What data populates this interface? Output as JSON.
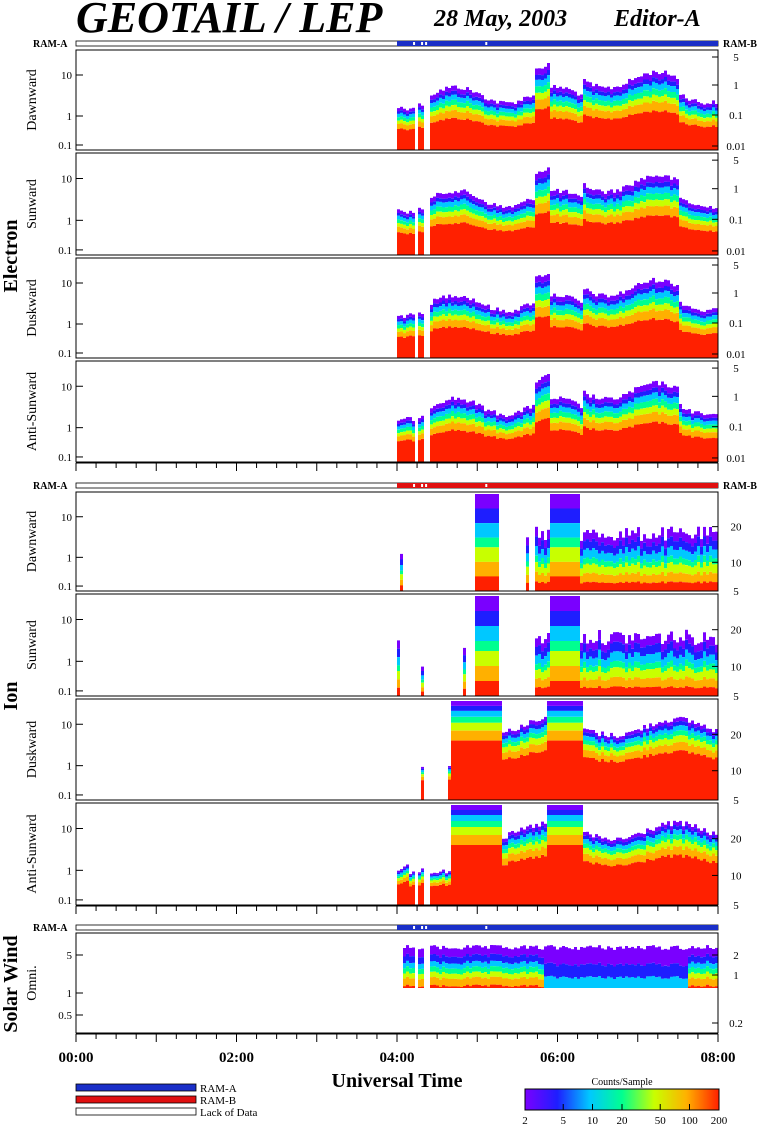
{
  "header": {
    "title": "GEOTAIL / LEP",
    "date": "28 May, 2003",
    "editor": "Editor-A"
  },
  "groups": [
    {
      "label": "Electron",
      "ram_left": "RAM-A",
      "ram_right": "RAM-B"
    },
    {
      "label": "Ion",
      "ram_left": "RAM-A",
      "ram_right": "RAM-B"
    },
    {
      "label": "Solar Wind",
      "ram_left": "RAM-A"
    }
  ],
  "x_axis": {
    "title": "Universal Time",
    "ticks": [
      "00:00",
      "02:00",
      "04:00",
      "06:00",
      "08:00"
    ]
  },
  "legend": {
    "items": [
      {
        "label": "RAM-A",
        "color": "#1a2fc8"
      },
      {
        "label": "RAM-B",
        "color": "#e01010"
      },
      {
        "label": "Lack of Data",
        "color": "#ffffff"
      }
    ]
  },
  "colorbar": {
    "title": "Counts/Sample",
    "ticks": [
      "2",
      "5",
      "10",
      "20",
      "50",
      "100",
      "200"
    ],
    "colors": [
      "#7a00ff",
      "#1e1eff",
      "#00c8ff",
      "#00ff90",
      "#c8ff00",
      "#ffb000",
      "#ff2000"
    ]
  },
  "chart_data": {
    "type": "heatmap",
    "x_range": [
      "00:00",
      "08:00"
    ],
    "data_start": "04:00",
    "panels": [
      {
        "group": "Electron",
        "ylabel": "Dawnward",
        "left_ticks": [
          "10",
          "1",
          "0.1"
        ],
        "right_ticks": [
          "5",
          "1",
          "0.1",
          "0.01"
        ]
      },
      {
        "group": "Electron",
        "ylabel": "Sunward",
        "left_ticks": [
          "10",
          "1",
          "0.1"
        ],
        "right_ticks": [
          "5",
          "1",
          "0.1",
          "0.01"
        ]
      },
      {
        "group": "Electron",
        "ylabel": "Duskward",
        "left_ticks": [
          "10",
          "1",
          "0.1"
        ],
        "right_ticks": [
          "5",
          "1",
          "0.1",
          "0.01"
        ]
      },
      {
        "group": "Electron",
        "ylabel": "Anti-Sunward",
        "left_ticks": [
          "10",
          "1",
          "0.1"
        ],
        "right_ticks": [
          "5",
          "1",
          "0.1",
          "0.01"
        ]
      },
      {
        "group": "Ion",
        "ylabel": "Dawnward",
        "left_ticks": [
          "10",
          "1",
          "0.1"
        ],
        "right_ticks": [
          "20",
          "10",
          "5"
        ]
      },
      {
        "group": "Ion",
        "ylabel": "Sunward",
        "left_ticks": [
          "10",
          "1",
          "0.1"
        ],
        "right_ticks": [
          "20",
          "10",
          "5"
        ]
      },
      {
        "group": "Ion",
        "ylabel": "Duskward",
        "left_ticks": [
          "10",
          "1",
          "0.1"
        ],
        "right_ticks": [
          "20",
          "10",
          "5"
        ]
      },
      {
        "group": "Ion",
        "ylabel": "Anti-Sunward",
        "left_ticks": [
          "10",
          "1",
          "0.1"
        ],
        "right_ticks": [
          "20",
          "10",
          "5"
        ]
      },
      {
        "group": "Solar Wind",
        "ylabel": "Omni.",
        "left_ticks": [
          "5",
          "1",
          "0.5"
        ],
        "right_ticks": [
          "2",
          "1",
          "0.2"
        ]
      }
    ]
  }
}
